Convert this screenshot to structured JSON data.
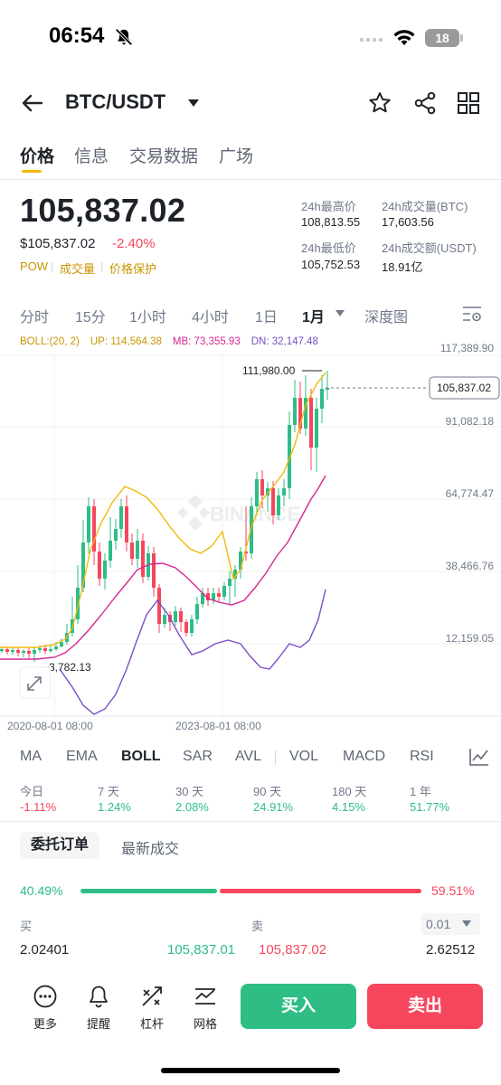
{
  "status_bar": {
    "time": "06:54",
    "battery": "18"
  },
  "header": {
    "pair": "BTC/USDT"
  },
  "tabs": [
    "价格",
    "信息",
    "交易数据",
    "广场"
  ],
  "price": {
    "last": "105,837.02",
    "usd": "$105,837.02",
    "change": "-2.40%",
    "tags": [
      "POW",
      "成交量",
      "价格保护"
    ]
  },
  "stats": {
    "high_label": "24h最高价",
    "high_value": "108,813.55",
    "vol_btc_label": "24h成交量(BTC)",
    "vol_btc_value": "17,603.56",
    "low_label": "24h最低价",
    "low_value": "105,752.53",
    "vol_usdt_label": "24h成交额(USDT)",
    "vol_usdt_value": "18.91亿"
  },
  "intervals": [
    "分时",
    "15分",
    "1小时",
    "4小时",
    "1日",
    "1月",
    "深度图"
  ],
  "boll": {
    "label": "BOLL:(20, 2)",
    "up": "UP: 114,564.38",
    "mb": "MB: 73,355.93",
    "dn": "DN: 32,147.48",
    "colors": {
      "up": "#f0b90b",
      "mb": "#d6278f",
      "dn": "#7b4fc4"
    }
  },
  "chart_data": {
    "type": "candlestick",
    "y_ticks": [
      "117,389.90",
      "91,082.18",
      "64,774.47",
      "38,466.76",
      "12,159.05"
    ],
    "x_ticks": [
      "2020-08-01 08:00",
      "2023-08-01 08:00"
    ],
    "last_price_label": "105,837.02",
    "high_marker": "111,980.00",
    "low_marker": "3,782.13",
    "watermark": "BINANCE"
  },
  "indicators": [
    "MA",
    "EMA",
    "BOLL",
    "SAR",
    "AVL",
    "VOL",
    "MACD",
    "RSI"
  ],
  "performance": [
    {
      "label": "今日",
      "value": "-1.11%"
    },
    {
      "label": "7 天",
      "value": "1.24%"
    },
    {
      "label": "30 天",
      "value": "2.08%"
    },
    {
      "label": "90 天",
      "value": "24.91%"
    },
    {
      "label": "180 天",
      "value": "4.15%"
    },
    {
      "label": "1 年",
      "value": "51.77%"
    }
  ],
  "orderbook": {
    "tab_orders": "委托订单",
    "tab_trades": "最新成交",
    "buy_ratio": "40.49%",
    "sell_ratio": "59.51%",
    "buy_label": "买",
    "sell_label": "卖",
    "tick": "0.01",
    "rows": [
      {
        "bid_qty": "2.02401",
        "bid_price": "105,837.01",
        "ask_price": "105,837.02",
        "ask_qty": "2.62512"
      }
    ]
  },
  "bottom_bar": {
    "more": "更多",
    "alert": "提醒",
    "leverage": "杠杆",
    "grid": "网格",
    "buy": "买入",
    "sell": "卖出"
  }
}
